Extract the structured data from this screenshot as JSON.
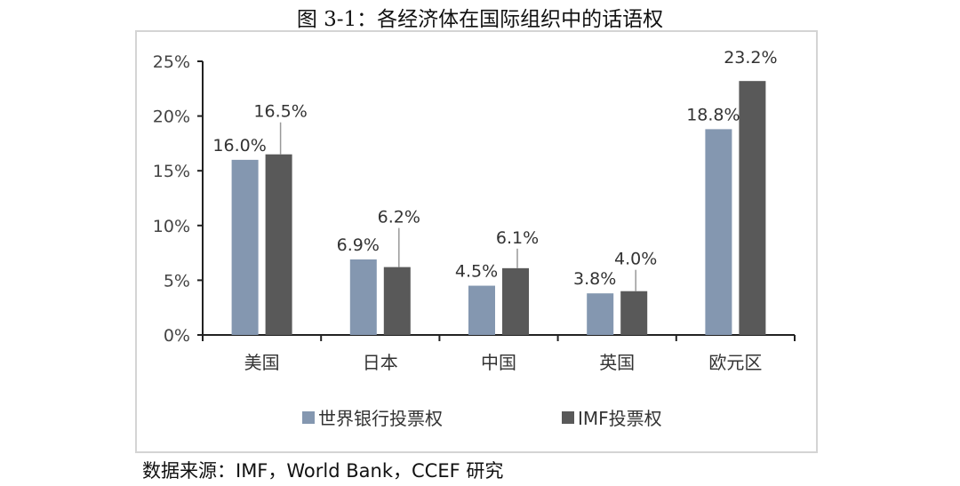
{
  "title": "图 3-1：各经济体在国际组织中的话语权",
  "source": "数据来源：IMF，World Bank，CCEF 研究",
  "chart_data": {
    "type": "bar",
    "categories": [
      "美国",
      "日本",
      "中国",
      "英国",
      "欧元区"
    ],
    "series": [
      {
        "name": "世界银行投票权",
        "values": [
          16.0,
          6.9,
          4.5,
          3.8,
          18.8
        ],
        "labels": [
          "16.0%",
          "6.9%",
          "4.5%",
          "3.8%",
          "18.8%"
        ],
        "color": "#8497b0"
      },
      {
        "name": "IMF投票权",
        "values": [
          16.5,
          6.2,
          6.1,
          4.0,
          23.2
        ],
        "labels": [
          "16.5%",
          "6.2%",
          "6.1%",
          "4.0%",
          "23.2%"
        ],
        "color": "#595959"
      }
    ],
    "ylim": [
      0,
      25
    ],
    "yticks": [
      0,
      5,
      10,
      15,
      20,
      25
    ],
    "ytick_labels": [
      "0%",
      "5%",
      "10%",
      "15%",
      "20%",
      "25%"
    ],
    "legend_position": "bottom",
    "grid": false
  }
}
